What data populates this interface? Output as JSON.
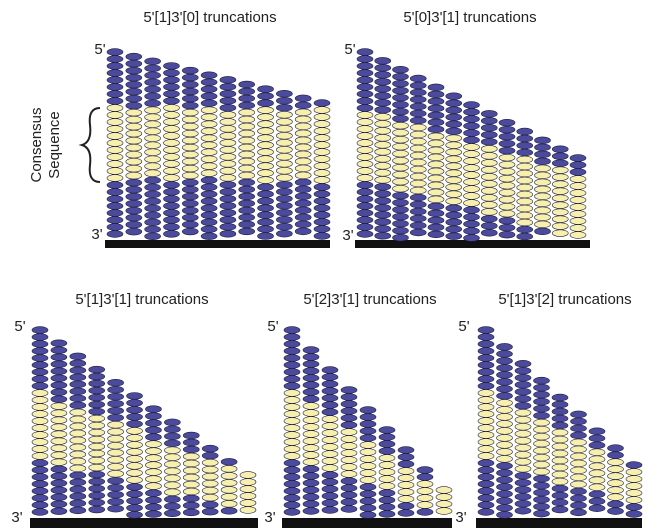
{
  "panels": [
    {
      "title": "5'[1]3'[0] truncations",
      "five_prime": "5'",
      "three_prime": "3'"
    },
    {
      "title": "5'[0]3'[1] truncations",
      "five_prime": "5'",
      "three_prime": "3'"
    },
    {
      "title": "5'[1]3'[1] truncations",
      "five_prime": "5'",
      "three_prime": "3'"
    },
    {
      "title": "5'[2]3'[1] truncations",
      "five_prime": "5'",
      "three_prime": "3'"
    },
    {
      "title": "5'[1]3'[2] truncations",
      "five_prime": "5'",
      "three_prime": "3'"
    }
  ],
  "consensus_label": [
    "Consensus",
    "Sequence"
  ]
}
